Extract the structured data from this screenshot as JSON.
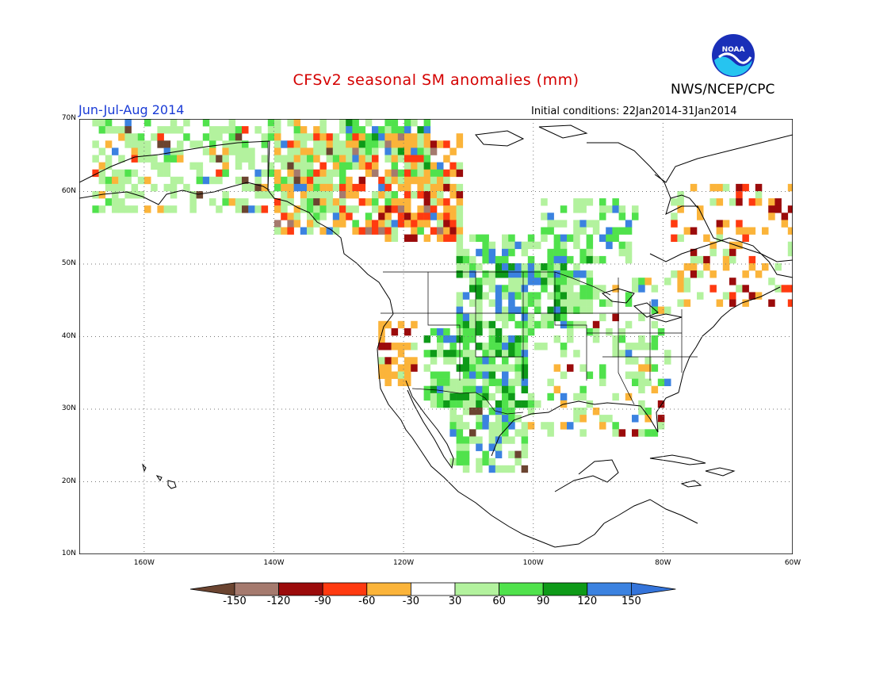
{
  "title": "CFSv2 seasonal SM anomalies (mm)",
  "agency": "NWS/NCEP/CPC",
  "logo_text": "NOAA",
  "period": "Jun-Jul-Aug 2014",
  "initial_conditions": "Initial conditions: 22Jan2014-31Jan2014",
  "map": {
    "lon_range": [
      -170,
      -60
    ],
    "lat_range": [
      10,
      70
    ],
    "lat_labels": [
      "70N",
      "60N",
      "50N",
      "40N",
      "30N",
      "20N",
      "10N"
    ],
    "lon_labels": [
      "160W",
      "140W",
      "120W",
      "100W",
      "80W",
      "60W"
    ],
    "grid": "dotted"
  },
  "colorbar": {
    "labels": [
      "-150",
      "-120",
      "-90",
      "-60",
      "-30",
      "30",
      "60",
      "90",
      "120",
      "150"
    ],
    "colors": [
      "#6b4430",
      "#a57a6e",
      "#9b0b0b",
      "#ff3a10",
      "#fbb43a",
      "#ffffff",
      "#b3f29e",
      "#50e24c",
      "#0e9a18",
      "#3b82e0",
      "#3474da"
    ]
  },
  "anomaly_colors": {
    "brown": "#6b4430",
    "lightbrown": "#a57a6e",
    "darkred": "#9b0b0b",
    "red": "#ff3a10",
    "orange": "#fbb43a",
    "lightgreen": "#b3f29e",
    "green": "#50e24c",
    "darkgreen": "#0e9a18",
    "blue": "#3b82e0"
  }
}
